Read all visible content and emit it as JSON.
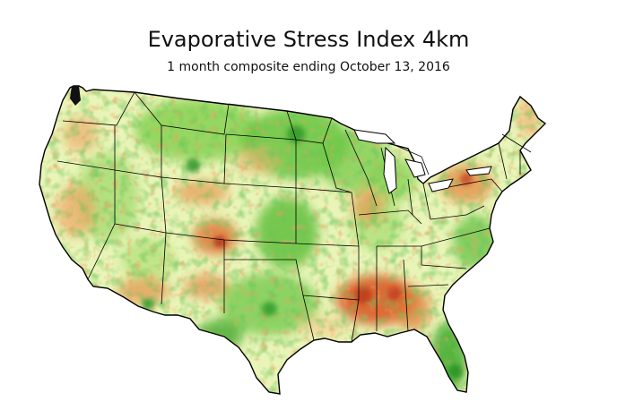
{
  "map": {
    "title": "Evaporative Stress Index 4km",
    "subtitle": "1 month composite ending October 13, 2016",
    "colors": {
      "background": "#ffffff",
      "border": "#000000",
      "strong_wet": "#1f8f1f",
      "wet": "#5cc23a",
      "moist": "#a9e06f",
      "neutral": "#eef7c6",
      "dry": "#f3c98a",
      "drier": "#e98a45",
      "severe": "#d5451d",
      "extreme": "#a91c12"
    }
  }
}
